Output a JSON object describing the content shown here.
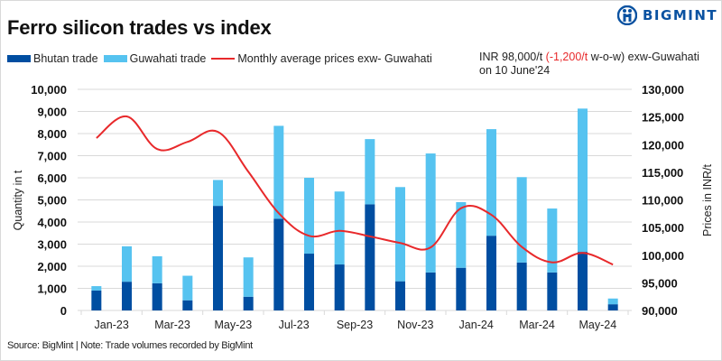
{
  "header": {
    "title": "Ferro silicon trades vs index",
    "logo_text": "BIGMINT"
  },
  "legend": {
    "items": [
      {
        "label": "Bhutan trade",
        "color": "#004ea1",
        "kind": "bar"
      },
      {
        "label": "Guwahati trade",
        "color": "#56c3f0",
        "kind": "bar"
      },
      {
        "label": "Monthly average prices exw- Guwahati",
        "color": "#e8292b",
        "kind": "line"
      }
    ]
  },
  "note": {
    "prefix": "INR 98,000/t",
    "change": "(-1,200/t",
    "suffix": "w-o-w)  exw-Guwahati",
    "line2": "on 10 June'24",
    "change_color": "#e8292b"
  },
  "footer": {
    "source": "Source: BigMint | Note: Trade volumes recorded by BigMint"
  },
  "chart_data": {
    "type": "bar",
    "stacked": true,
    "title": "Ferro silicon trades vs index",
    "categories": [
      "Jan-23",
      "Feb-23",
      "Mar-23",
      "Apr-23",
      "May-23",
      "Jun-23",
      "Jul-23",
      "Aug-23",
      "Sep-23",
      "Oct-23",
      "Nov-23",
      "Dec-23",
      "Jan-24",
      "Feb-24",
      "Mar-24",
      "Apr-24",
      "May-24",
      "Jun-24"
    ],
    "x_tick_labels": [
      "Jan-23",
      "Mar-23",
      "May-23",
      "Jul-23",
      "Sep-23",
      "Nov-23",
      "Jan-24",
      "Mar-24",
      "May-24"
    ],
    "series": [
      {
        "name": "Bhutan trade",
        "type": "bar",
        "axis": "left",
        "color": "#004ea1",
        "values": [
          900,
          1300,
          1230,
          460,
          4730,
          620,
          4150,
          2570,
          2080,
          4800,
          1320,
          1720,
          1930,
          3380,
          2170,
          1720,
          2650,
          280
        ]
      },
      {
        "name": "Guwahati trade",
        "type": "bar",
        "axis": "left",
        "color": "#56c3f0",
        "values": [
          200,
          1600,
          1220,
          1110,
          1170,
          1780,
          4200,
          3430,
          3300,
          2950,
          4260,
          5380,
          2970,
          4820,
          3860,
          2890,
          6480,
          260
        ]
      },
      {
        "name": "Monthly average prices exw- Guwahati",
        "type": "line",
        "axis": "right",
        "color": "#e8292b",
        "values": [
          121200,
          125100,
          119200,
          120500,
          122300,
          115100,
          107600,
          103500,
          104400,
          103400,
          102200,
          101400,
          108500,
          107300,
          101500,
          98700,
          100400,
          98300
        ]
      }
    ],
    "ylabel": "Quantity in t",
    "ylim": [
      0,
      10000
    ],
    "yticks": [
      "0",
      "1,000",
      "2,000",
      "3,000",
      "4,000",
      "5,000",
      "6,000",
      "7,000",
      "8,000",
      "9,000",
      "10,000"
    ],
    "y2label": "Prices in INR/t",
    "y2lim": [
      90000,
      130000
    ],
    "y2ticks": [
      "90,000",
      "95,000",
      "100,000",
      "105,000",
      "110,000",
      "115,000",
      "120,000",
      "125,000",
      "130,000"
    ],
    "grid": true,
    "legend_position": "top-left"
  }
}
